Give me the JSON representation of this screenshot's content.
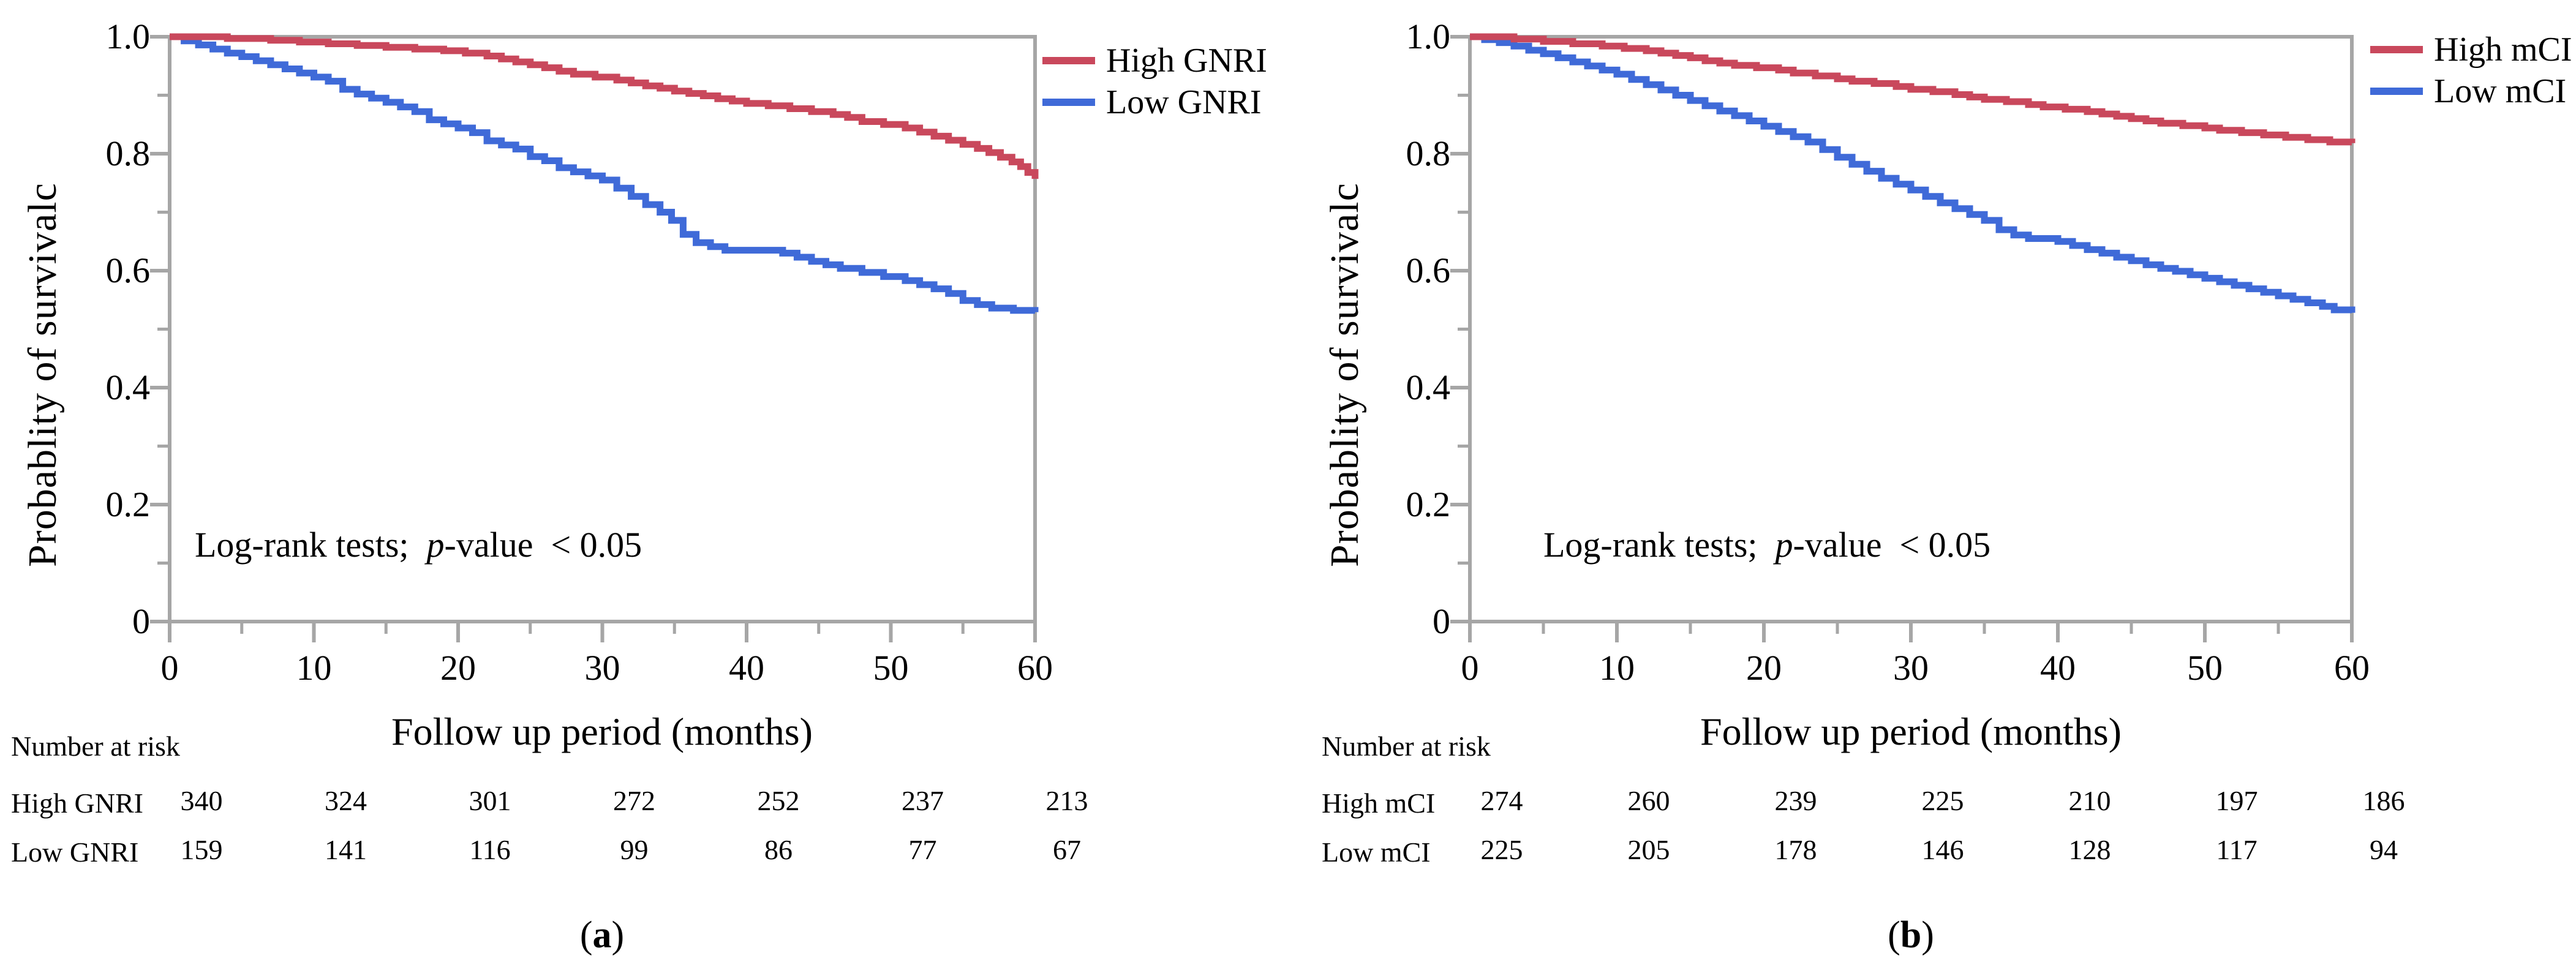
{
  "colors": {
    "axis": "#A6A6A6",
    "high": "#C9485C",
    "low": "#3F6AD8"
  },
  "chart_data": [
    {
      "type": "line",
      "subtype": "kaplan-meier-step",
      "title": "",
      "xlabel": "Follow up period (months)",
      "ylabel": "Probablity of survivalc",
      "xlim": [
        0,
        60
      ],
      "ylim": [
        0,
        1.0
      ],
      "grid": false,
      "legend_position": "outside-top-right",
      "xticks": {
        "major": [
          0,
          10,
          20,
          30,
          40,
          50,
          60
        ],
        "minor": [
          5,
          15,
          25,
          35,
          45,
          55
        ],
        "labels": [
          "0",
          "10",
          "20",
          "30",
          "40",
          "50",
          "60"
        ]
      },
      "yticks": {
        "major": [
          1.0,
          0.8,
          0.6,
          0.4,
          0.2,
          0
        ],
        "minor": [
          0.9,
          0.7,
          0.5,
          0.3,
          0.1
        ],
        "labels": [
          "1.0",
          "0.8",
          "0.6",
          "0.4",
          "0.2",
          "0"
        ]
      },
      "annotation": {
        "prefix": "Log-rank tests;  ",
        "p": "p",
        "suffix": "-value  < 0.05"
      },
      "caption": {
        "pre": "(",
        "letter": "a",
        "post": ")"
      },
      "series": [
        {
          "name": "High GNRI",
          "color": "#C9485C",
          "points": [
            [
              0,
              1.0
            ],
            [
              4,
              0.997
            ],
            [
              7,
              0.994
            ],
            [
              9,
              0.991
            ],
            [
              11,
              0.988
            ],
            [
              13,
              0.985
            ],
            [
              15,
              0.982
            ],
            [
              17,
              0.979
            ],
            [
              19,
              0.976
            ],
            [
              20.5,
              0.972
            ],
            [
              22,
              0.967
            ],
            [
              23,
              0.962
            ],
            [
              24,
              0.957
            ],
            [
              25,
              0.952
            ],
            [
              26,
              0.947
            ],
            [
              27,
              0.941
            ],
            [
              28,
              0.936
            ],
            [
              29.5,
              0.931
            ],
            [
              31,
              0.926
            ],
            [
              32,
              0.921
            ],
            [
              33,
              0.916
            ],
            [
              34,
              0.912
            ],
            [
              35,
              0.907
            ],
            [
              36,
              0.903
            ],
            [
              37,
              0.899
            ],
            [
              38,
              0.894
            ],
            [
              39,
              0.89
            ],
            [
              40,
              0.886
            ],
            [
              41.5,
              0.882
            ],
            [
              43,
              0.877
            ],
            [
              44.5,
              0.872
            ],
            [
              46,
              0.867
            ],
            [
              47,
              0.862
            ],
            [
              48,
              0.855
            ],
            [
              49.5,
              0.85
            ],
            [
              51,
              0.844
            ],
            [
              52,
              0.837
            ],
            [
              53,
              0.83
            ],
            [
              54,
              0.823
            ],
            [
              55,
              0.816
            ],
            [
              56,
              0.809
            ],
            [
              56.8,
              0.802
            ],
            [
              57.6,
              0.794
            ],
            [
              58.4,
              0.786
            ],
            [
              59,
              0.778
            ],
            [
              59.5,
              0.768
            ],
            [
              60,
              0.757
            ]
          ]
        },
        {
          "name": "Low GNRI",
          "color": "#3F6AD8",
          "points": [
            [
              0,
              1.0
            ],
            [
              1,
              0.993
            ],
            [
              2,
              0.986
            ],
            [
              3,
              0.979
            ],
            [
              4,
              0.972
            ],
            [
              5,
              0.966
            ],
            [
              6,
              0.959
            ],
            [
              7,
              0.952
            ],
            [
              8,
              0.945
            ],
            [
              9,
              0.938
            ],
            [
              10,
              0.931
            ],
            [
              11,
              0.924
            ],
            [
              12,
              0.91
            ],
            [
              13,
              0.902
            ],
            [
              14,
              0.895
            ],
            [
              15,
              0.888
            ],
            [
              16,
              0.88
            ],
            [
              17,
              0.872
            ],
            [
              18,
              0.858
            ],
            [
              19,
              0.851
            ],
            [
              20,
              0.844
            ],
            [
              21,
              0.836
            ],
            [
              22,
              0.822
            ],
            [
              23,
              0.815
            ],
            [
              24,
              0.808
            ],
            [
              25,
              0.795
            ],
            [
              26,
              0.788
            ],
            [
              27,
              0.776
            ],
            [
              28,
              0.769
            ],
            [
              29,
              0.762
            ],
            [
              30,
              0.755
            ],
            [
              31,
              0.741
            ],
            [
              32,
              0.727
            ],
            [
              33,
              0.713
            ],
            [
              34,
              0.7
            ],
            [
              34.8,
              0.686
            ],
            [
              35.6,
              0.662
            ],
            [
              36.5,
              0.648
            ],
            [
              37.5,
              0.641
            ],
            [
              38.5,
              0.635
            ],
            [
              42.5,
              0.63
            ],
            [
              43.5,
              0.623
            ],
            [
              44.5,
              0.616
            ],
            [
              45.5,
              0.61
            ],
            [
              46.5,
              0.604
            ],
            [
              48,
              0.597
            ],
            [
              49.5,
              0.59
            ],
            [
              51,
              0.583
            ],
            [
              52,
              0.576
            ],
            [
              53,
              0.569
            ],
            [
              54,
              0.561
            ],
            [
              55,
              0.549
            ],
            [
              56,
              0.542
            ],
            [
              57,
              0.536
            ],
            [
              58.5,
              0.532
            ],
            [
              60,
              0.529
            ]
          ]
        }
      ],
      "number_at_risk": {
        "title": "Number at risk",
        "rows": [
          {
            "label": "High GNRI",
            "values": [
              "340",
              "324",
              "301",
              "272",
              "252",
              "237",
              "213"
            ]
          },
          {
            "label": "Low GNRI",
            "values": [
              "159",
              "141",
              "116",
              "99",
              "86",
              "77",
              "67"
            ]
          }
        ]
      }
    },
    {
      "type": "line",
      "subtype": "kaplan-meier-step",
      "title": "",
      "xlabel": "Follow up period (months)",
      "ylabel": "Probablity of survivalc",
      "xlim": [
        0,
        60
      ],
      "ylim": [
        0,
        1.0
      ],
      "grid": false,
      "legend_position": "outside-top-right",
      "xticks": {
        "major": [
          0,
          10,
          20,
          30,
          40,
          50,
          60
        ],
        "minor": [
          5,
          15,
          25,
          35,
          45,
          55
        ],
        "labels": [
          "0",
          "10",
          "20",
          "30",
          "40",
          "50",
          "60"
        ]
      },
      "yticks": {
        "major": [
          1.0,
          0.8,
          0.6,
          0.4,
          0.2,
          0
        ],
        "minor": [
          0.9,
          0.7,
          0.5,
          0.3,
          0.1
        ],
        "labels": [
          "1.0",
          "0.8",
          "0.6",
          "0.4",
          "0.2",
          "0"
        ]
      },
      "annotation": {
        "prefix": "Log-rank tests;  ",
        "p": "p",
        "suffix": "-value  < 0.05"
      },
      "caption": {
        "pre": "(",
        "letter": "b",
        "post": ")"
      },
      "series": [
        {
          "name": "High mCI",
          "color": "#C9485C",
          "points": [
            [
              0,
              1.0
            ],
            [
              3,
              0.996
            ],
            [
              5,
              0.992
            ],
            [
              7,
              0.988
            ],
            [
              9,
              0.984
            ],
            [
              10.5,
              0.98
            ],
            [
              12,
              0.976
            ],
            [
              13,
              0.972
            ],
            [
              14,
              0.968
            ],
            [
              15,
              0.964
            ],
            [
              16,
              0.959
            ],
            [
              17,
              0.955
            ],
            [
              18,
              0.951
            ],
            [
              19.5,
              0.947
            ],
            [
              21,
              0.943
            ],
            [
              22,
              0.938
            ],
            [
              23.5,
              0.933
            ],
            [
              25,
              0.928
            ],
            [
              26,
              0.924
            ],
            [
              27.5,
              0.92
            ],
            [
              29,
              0.915
            ],
            [
              30,
              0.91
            ],
            [
              31.5,
              0.906
            ],
            [
              33,
              0.901
            ],
            [
              34,
              0.897
            ],
            [
              35,
              0.893
            ],
            [
              36.5,
              0.889
            ],
            [
              38,
              0.884
            ],
            [
              39,
              0.88
            ],
            [
              40.5,
              0.876
            ],
            [
              42,
              0.872
            ],
            [
              43,
              0.868
            ],
            [
              44,
              0.864
            ],
            [
              45,
              0.86
            ],
            [
              46,
              0.856
            ],
            [
              47,
              0.852
            ],
            [
              48.5,
              0.848
            ],
            [
              50,
              0.844
            ],
            [
              51,
              0.84
            ],
            [
              52.5,
              0.836
            ],
            [
              54,
              0.832
            ],
            [
              55.5,
              0.828
            ],
            [
              57,
              0.824
            ],
            [
              58.5,
              0.82
            ],
            [
              60,
              0.818
            ]
          ]
        },
        {
          "name": "Low mCI",
          "color": "#3F6AD8",
          "points": [
            [
              0,
              1.0
            ],
            [
              1,
              0.995
            ],
            [
              2,
              0.99
            ],
            [
              3,
              0.984
            ],
            [
              4,
              0.977
            ],
            [
              5,
              0.971
            ],
            [
              6,
              0.964
            ],
            [
              7,
              0.957
            ],
            [
              8,
              0.95
            ],
            [
              9,
              0.943
            ],
            [
              10,
              0.936
            ],
            [
              11,
              0.927
            ],
            [
              12,
              0.918
            ],
            [
              13,
              0.909
            ],
            [
              14,
              0.9
            ],
            [
              15,
              0.891
            ],
            [
              16,
              0.882
            ],
            [
              17,
              0.873
            ],
            [
              18,
              0.865
            ],
            [
              19,
              0.856
            ],
            [
              20,
              0.847
            ],
            [
              21,
              0.838
            ],
            [
              22,
              0.829
            ],
            [
              23,
              0.82
            ],
            [
              24,
              0.807
            ],
            [
              25,
              0.794
            ],
            [
              26,
              0.782
            ],
            [
              27,
              0.77
            ],
            [
              28,
              0.758
            ],
            [
              29,
              0.748
            ],
            [
              30,
              0.738
            ],
            [
              31,
              0.727
            ],
            [
              32,
              0.716
            ],
            [
              33,
              0.706
            ],
            [
              34,
              0.696
            ],
            [
              35,
              0.686
            ],
            [
              36,
              0.67
            ],
            [
              37,
              0.661
            ],
            [
              38,
              0.655
            ],
            [
              40,
              0.65
            ],
            [
              41,
              0.643
            ],
            [
              42,
              0.636
            ],
            [
              43,
              0.63
            ],
            [
              44,
              0.623
            ],
            [
              45,
              0.617
            ],
            [
              46,
              0.61
            ],
            [
              47,
              0.604
            ],
            [
              48,
              0.599
            ],
            [
              49,
              0.593
            ],
            [
              50,
              0.587
            ],
            [
              51,
              0.581
            ],
            [
              52,
              0.575
            ],
            [
              53,
              0.569
            ],
            [
              54,
              0.563
            ],
            [
              55,
              0.557
            ],
            [
              56,
              0.551
            ],
            [
              57,
              0.545
            ],
            [
              58,
              0.539
            ],
            [
              58.8,
              0.533
            ],
            [
              60,
              0.528
            ]
          ]
        }
      ],
      "number_at_risk": {
        "title": "Number at risk",
        "rows": [
          {
            "label": "High mCI",
            "values": [
              "274",
              "260",
              "239",
              "225",
              "210",
              "197",
              "186"
            ]
          },
          {
            "label": "Low mCI",
            "values": [
              "225",
              "205",
              "178",
              "146",
              "128",
              "117",
              "94"
            ]
          }
        ]
      }
    }
  ]
}
